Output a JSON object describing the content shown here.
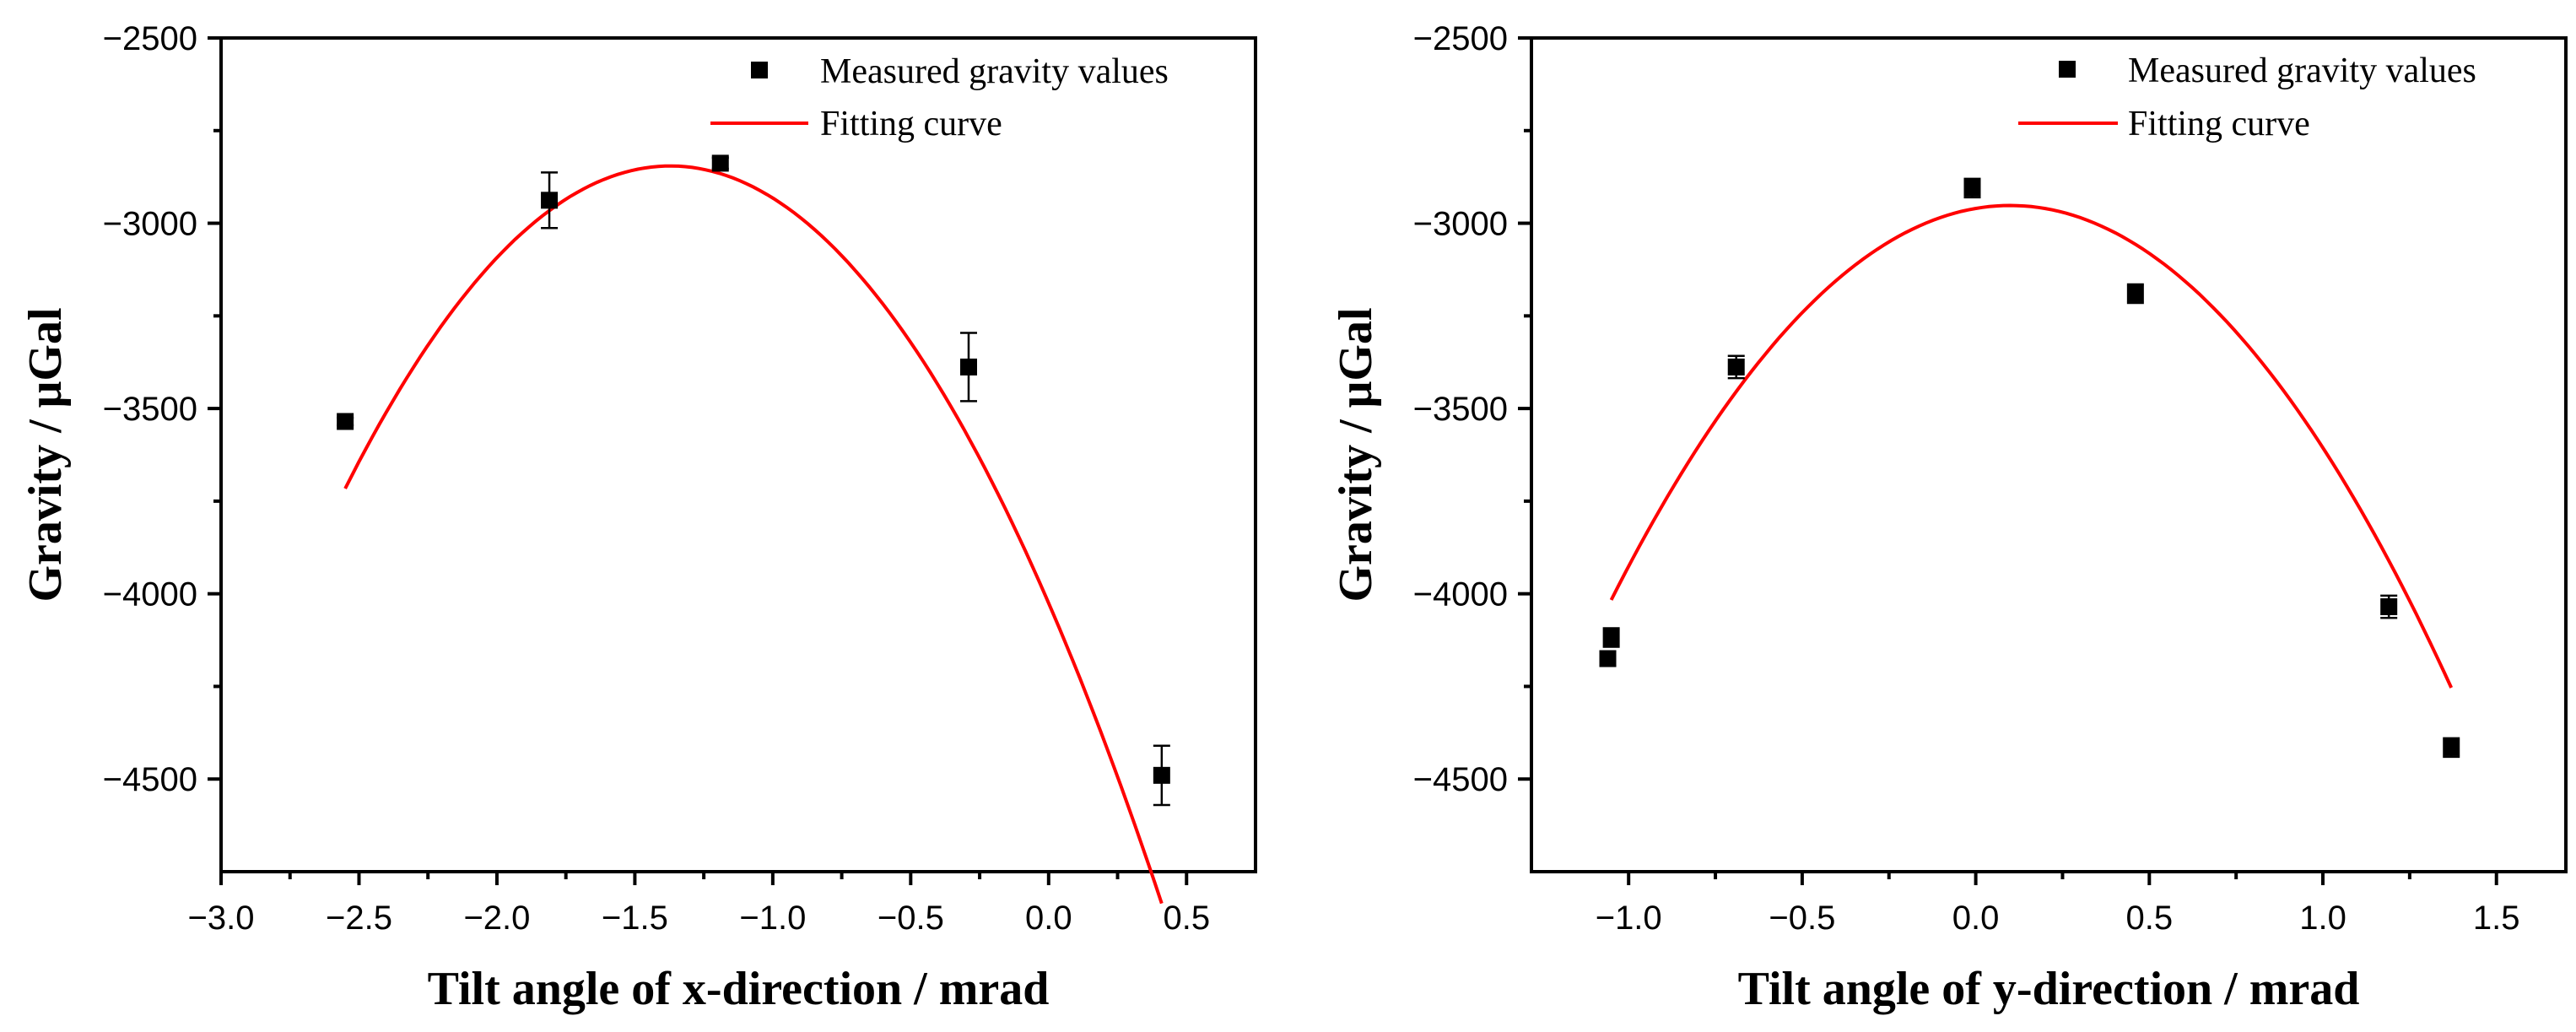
{
  "chart_data": [
    {
      "type": "scatter",
      "title": "",
      "xlabel": "Tilt angle of x-direction / mrad",
      "ylabel": "Gravity / μGal",
      "xlim": [
        -3.0,
        0.75
      ],
      "ylim": [
        -4750,
        -2500
      ],
      "xticks": [
        "-3.0",
        "-2.5",
        "-2.0",
        "-1.5",
        "-1.0",
        "-0.5",
        "0.0",
        "0.5"
      ],
      "yticks": [
        "-2500",
        "-3000",
        "-3500",
        "-4000",
        "-4500"
      ],
      "legend_position": "top-right",
      "grid": false,
      "series": [
        {
          "name": "Measured gravity values",
          "kind": "scatter",
          "color": "#000000",
          "points": [
            {
              "x": -2.55,
              "y": -3535,
              "err": 10
            },
            {
              "x": -1.81,
              "y": -2938,
              "err": 75
            },
            {
              "x": -1.19,
              "y": -2838,
              "err": 15
            },
            {
              "x": -0.29,
              "y": -3388,
              "err": 92
            },
            {
              "x": 0.41,
              "y": -4490,
              "err": 80
            }
          ]
        },
        {
          "name": "Fitting curve",
          "kind": "line",
          "color": "#ff0000",
          "x_range": [
            -2.55,
            0.41
          ],
          "coefficients": [
            -4025,
            -1720,
            -627
          ]
        }
      ]
    },
    {
      "type": "scatter",
      "title": "",
      "xlabel": "Tilt angle of y-direction / mrad",
      "ylabel": "Gravity / μGal",
      "xlim": [
        -1.28,
        1.7
      ],
      "ylim": [
        -4750,
        -2500
      ],
      "xticks": [
        "-1.0",
        "-0.5",
        "0.0",
        "0.5",
        "1.0",
        "1.5"
      ],
      "yticks": [
        "-2500",
        "-3000",
        "-3500",
        "-4000",
        "-4500"
      ],
      "legend_position": "top-right",
      "grid": false,
      "series": [
        {
          "name": "Measured gravity values",
          "kind": "scatter",
          "color": "#000000",
          "points": [
            {
              "x": -1.05,
              "y": -4118,
              "err": 25
            },
            {
              "x": -1.06,
              "y": -4175,
              "err": 20
            },
            {
              "x": -0.69,
              "y": -3388,
              "err": 30
            },
            {
              "x": -0.01,
              "y": -2905,
              "err": 25
            },
            {
              "x": 0.46,
              "y": -3190,
              "err": 25
            },
            {
              "x": 1.19,
              "y": -4035,
              "err": 30
            },
            {
              "x": 1.37,
              "y": -4415,
              "err": 25
            }
          ]
        },
        {
          "name": "Fitting curve",
          "kind": "line",
          "color": "#ff0000",
          "x_range": [
            -1.05,
            1.37
          ],
          "coefficients": [
            -2960,
            160,
            -806
          ]
        }
      ]
    }
  ]
}
